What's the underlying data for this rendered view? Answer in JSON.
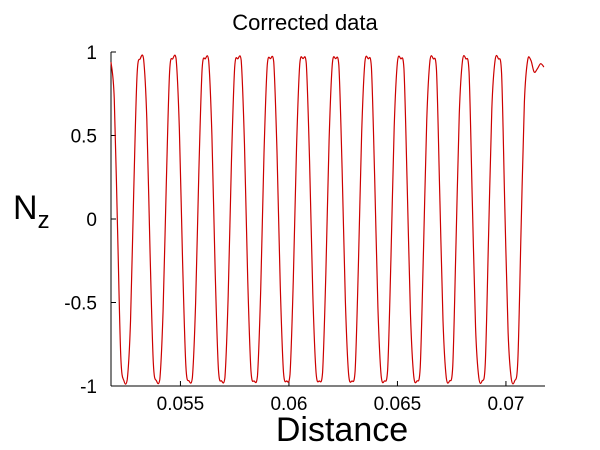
{
  "chart_data": {
    "type": "line",
    "title": "Corrected data",
    "xlabel": "Distance",
    "ylabel": "N",
    "ylabel_subscript": "z",
    "xlim": [
      0.0518,
      0.0718
    ],
    "ylim": [
      -1,
      1
    ],
    "xticks": [
      0.055,
      0.06,
      0.065,
      0.07
    ],
    "xtick_labels": [
      "0.055",
      "0.06",
      "0.065",
      "0.07"
    ],
    "yticks": [
      1,
      0.5,
      0,
      -0.5,
      -1
    ],
    "ytick_labels": [
      "1",
      "0.5",
      "0",
      "-0.5",
      "-1"
    ],
    "grid": false,
    "box": false,
    "series": [
      {
        "color": "#cc0000",
        "x": [
          0.0518,
          0.05195,
          0.0521,
          0.05225,
          0.0524,
          0.05255,
          0.0527,
          0.05285,
          0.053,
          0.05315,
          0.0533,
          0.05345,
          0.0536,
          0.05375,
          0.0539,
          0.05405,
          0.0542,
          0.05435,
          0.0545,
          0.05465,
          0.0548,
          0.05495,
          0.0551,
          0.05525,
          0.0554,
          0.05555,
          0.0557,
          0.05585,
          0.056,
          0.05615,
          0.0563,
          0.05645,
          0.0566,
          0.05675,
          0.0569,
          0.05705,
          0.0572,
          0.05735,
          0.0575,
          0.05765,
          0.0578,
          0.05795,
          0.0581,
          0.05825,
          0.0584,
          0.05855,
          0.0587,
          0.05885,
          0.059,
          0.05915,
          0.0593,
          0.05945,
          0.0596,
          0.05975,
          0.0599,
          0.06005,
          0.0602,
          0.06035,
          0.0605,
          0.06065,
          0.0608,
          0.06095,
          0.0611,
          0.06125,
          0.0614,
          0.06155,
          0.0617,
          0.06185,
          0.062,
          0.06215,
          0.0623,
          0.06245,
          0.0626,
          0.06275,
          0.0629,
          0.06305,
          0.0632,
          0.06335,
          0.0635,
          0.06365,
          0.0638,
          0.06395,
          0.0641,
          0.06425,
          0.0644,
          0.06455,
          0.0647,
          0.06485,
          0.065,
          0.06515,
          0.0653,
          0.06545,
          0.0656,
          0.06575,
          0.0659,
          0.06605,
          0.0662,
          0.06635,
          0.0665,
          0.06665,
          0.0668,
          0.06695,
          0.0671,
          0.06725,
          0.0674,
          0.06755,
          0.0677,
          0.06785,
          0.068,
          0.06815,
          0.0683,
          0.06845,
          0.0686,
          0.06875,
          0.0689,
          0.06905,
          0.0692,
          0.06935,
          0.0695,
          0.06965,
          0.0698,
          0.06995,
          0.0701,
          0.07025,
          0.0704,
          0.07055,
          0.0707,
          0.07085,
          0.071,
          0.07115,
          0.0713,
          0.07145,
          0.0716,
          0.07175
        ],
        "y": [
          0.94,
          0.72,
          -0.05,
          -0.82,
          -0.97,
          -0.96,
          -0.61,
          0.18,
          0.86,
          0.96,
          0.96,
          0.6,
          -0.2,
          -0.86,
          -0.97,
          -0.96,
          -0.55,
          0.22,
          0.88,
          0.96,
          0.96,
          0.54,
          -0.26,
          -0.88,
          -0.97,
          -0.95,
          -0.5,
          0.29,
          0.9,
          0.96,
          0.95,
          0.5,
          -0.31,
          -0.9,
          -0.97,
          -0.95,
          -0.46,
          0.34,
          0.91,
          0.96,
          0.95,
          0.45,
          -0.36,
          -0.91,
          -0.97,
          -0.94,
          -0.42,
          0.39,
          0.92,
          0.96,
          0.94,
          0.4,
          -0.4,
          -0.92,
          -0.97,
          -0.93,
          -0.37,
          0.43,
          0.93,
          0.96,
          0.93,
          0.35,
          -0.45,
          -0.92,
          -0.97,
          -0.92,
          -0.33,
          0.47,
          0.93,
          0.96,
          0.92,
          0.3,
          -0.49,
          -0.93,
          -0.97,
          -0.91,
          -0.28,
          0.51,
          0.94,
          0.96,
          0.91,
          0.25,
          -0.53,
          -0.94,
          -0.97,
          -0.9,
          -0.24,
          0.55,
          0.94,
          0.96,
          0.9,
          0.2,
          -0.57,
          -0.94,
          -0.97,
          -0.89,
          -0.19,
          0.59,
          0.95,
          0.96,
          0.89,
          0.15,
          -0.61,
          -0.95,
          -0.97,
          -0.88,
          -0.14,
          0.63,
          0.95,
          0.96,
          0.88,
          0.11,
          -0.65,
          -0.95,
          -0.97,
          -0.86,
          -0.1,
          0.66,
          0.95,
          0.96,
          0.87,
          0.06,
          -0.68,
          -0.96,
          -0.97,
          -0.84,
          -0.05,
          0.7,
          0.95,
          0.95,
          0.88,
          0.9,
          0.93,
          0.91
        ]
      }
    ]
  }
}
